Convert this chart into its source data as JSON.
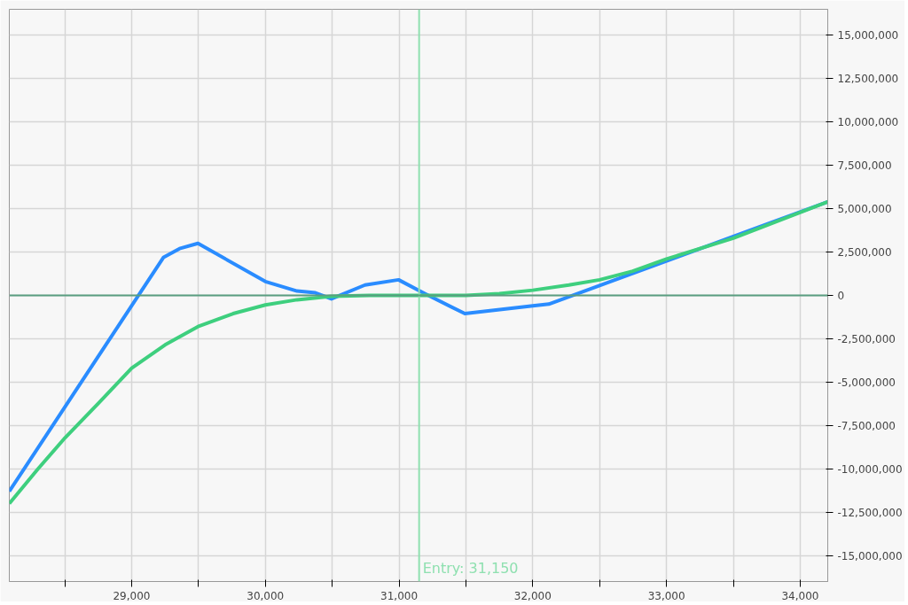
{
  "chart_data": {
    "type": "line",
    "series": [
      {
        "color": "#2a8cff",
        "x": [
          28085,
          29239,
          29358,
          29496,
          30000,
          30237,
          30374,
          30494,
          30745,
          30996,
          31193,
          31492,
          32000,
          32120,
          34206
        ],
        "values": [
          -11300000,
          2200000,
          2700000,
          3000000,
          800000,
          250000,
          150000,
          -200000,
          600000,
          900000,
          100000,
          -1050000,
          -600000,
          -500000,
          5400000
        ]
      },
      {
        "color": "#3ecf7e",
        "x": [
          28085,
          28300,
          28503,
          28754,
          29000,
          29250,
          29496,
          29759,
          30000,
          30237,
          30494,
          30775,
          31500,
          31750,
          32000,
          32270,
          32500,
          32747,
          33000,
          33500,
          34206
        ],
        "values": [
          -12000000,
          -10000000,
          -8200000,
          -6200000,
          -4200000,
          -2850000,
          -1800000,
          -1050000,
          -550000,
          -250000,
          -50000,
          0,
          0,
          100000,
          300000,
          600000,
          900000,
          1400000,
          2100000,
          3300000,
          5400000
        ]
      }
    ],
    "xlim": [
      28085,
      34206
    ],
    "ylim": [
      -16500000,
      16500000
    ],
    "xticks": [
      {
        "value": 28500,
        "label": null
      },
      {
        "value": 29000,
        "label": "29,000"
      },
      {
        "value": 29500,
        "label": null
      },
      {
        "value": 30000,
        "label": "30,000"
      },
      {
        "value": 30500,
        "label": null
      },
      {
        "value": 31000,
        "label": "31,000"
      },
      {
        "value": 31500,
        "label": null
      },
      {
        "value": 32000,
        "label": "32,000"
      },
      {
        "value": 32500,
        "label": null
      },
      {
        "value": 33000,
        "label": "33,000"
      },
      {
        "value": 33500,
        "label": null
      },
      {
        "value": 34000,
        "label": "34,000"
      }
    ],
    "yticks": [
      {
        "value": -15000000,
        "label": "-15,000,000"
      },
      {
        "value": -12500000,
        "label": "-12,500,000"
      },
      {
        "value": -10000000,
        "label": "-10,000,000"
      },
      {
        "value": -7500000,
        "label": "-7,500,000"
      },
      {
        "value": -5000000,
        "label": "-5,000,000"
      },
      {
        "value": -2500000,
        "label": "-2,500,000"
      },
      {
        "value": 0,
        "label": "0"
      },
      {
        "value": 2500000,
        "label": "2,500,000"
      },
      {
        "value": 5000000,
        "label": "5,000,000"
      },
      {
        "value": 7500000,
        "label": "7,500,000"
      },
      {
        "value": 10000000,
        "label": "10,000,000"
      },
      {
        "value": 12500000,
        "label": "12,500,000"
      },
      {
        "value": 15000000,
        "label": "15,000,000"
      }
    ],
    "ref_lines": [
      {
        "axis": "x",
        "value": 31150,
        "label": "Entry: 31,150",
        "color": "#8fe0b0"
      },
      {
        "axis": "y",
        "value": 0,
        "label": null,
        "color": "#5a9e80"
      }
    ],
    "grid": true,
    "marker": "none",
    "line_style": "solid"
  }
}
